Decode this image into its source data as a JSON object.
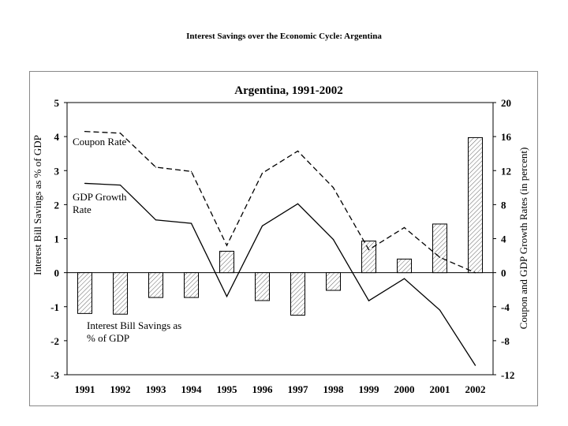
{
  "page": {
    "title": "Interest Savings over the Economic Cycle: Argentina"
  },
  "chart_data": {
    "type": "bar+line",
    "title": "Argentina, 1991-2002",
    "categories": [
      "1991",
      "1992",
      "1993",
      "1994",
      "1995",
      "1996",
      "1997",
      "1998",
      "1999",
      "2000",
      "2001",
      "2002"
    ],
    "y_left": {
      "label": "Interest Bill Savings as % of GDP",
      "range": [
        -3,
        5
      ],
      "ticks": [
        "-3",
        "-2",
        "-1",
        "0",
        "1",
        "2",
        "3",
        "4",
        "5"
      ]
    },
    "y_right": {
      "label": "Coupon and GDP Growth Rates (in percent)",
      "range": [
        -12,
        20
      ],
      "ticks": [
        "-12",
        "-8",
        "-4",
        "0",
        "4",
        "8",
        "12",
        "16",
        "20"
      ]
    },
    "series": [
      {
        "name": "Interest Bill Savings as % of GDP",
        "type": "bar",
        "axis": "left",
        "values": [
          -1.2,
          -1.22,
          -0.73,
          -0.73,
          0.63,
          -0.82,
          -1.25,
          -0.52,
          0.93,
          0.4,
          1.43,
          3.97
        ]
      },
      {
        "name": "Coupon Rate",
        "type": "line",
        "style": "dashed",
        "axis": "right",
        "values": [
          16.6,
          16.4,
          12.4,
          11.9,
          3.2,
          11.7,
          14.3,
          10.0,
          2.7,
          5.3,
          1.8,
          0.0
        ]
      },
      {
        "name": "GDP Growth Rate",
        "type": "line",
        "style": "solid",
        "axis": "right",
        "values": [
          10.5,
          10.3,
          6.2,
          5.8,
          -2.8,
          5.5,
          8.1,
          3.9,
          -3.3,
          -0.7,
          -4.4,
          -10.9
        ]
      }
    ],
    "annotations": {
      "coupon": "Coupon Rate",
      "gdp_line1": "GDP Growth",
      "gdp_line2": "Rate",
      "bars_line1": "Interest Bill Savings as",
      "bars_line2": "% of GDP"
    },
    "colors": {
      "bar_fill": "#ffffff",
      "bar_hatch": "#555555",
      "line": "#000000"
    },
    "grid": false
  }
}
